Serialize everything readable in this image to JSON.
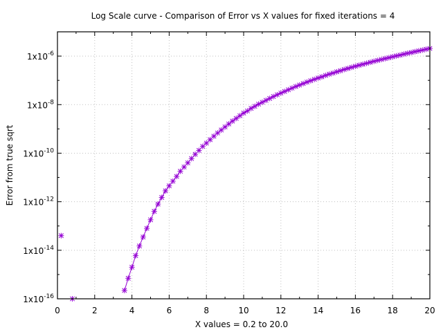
{
  "chart_data": {
    "type": "scatter",
    "title": "Log Scale curve - Comparison of Error vs X values for fixed iterations = 4",
    "xlabel": "X values = 0.2 to 20.0",
    "ylabel": "Error from true sqrt",
    "xlim": [
      0,
      20
    ],
    "ylim": [
      1e-16,
      1e-05
    ],
    "y_scale": "log",
    "grid": true,
    "legend": "none",
    "marker": "asterisk",
    "series_color": "#9400d3",
    "x_ticks": [
      "0",
      "2",
      "4",
      "6",
      "8",
      "10",
      "12",
      "14",
      "16",
      "18",
      "20"
    ],
    "y_ticks": [
      {
        "value": 1e-16,
        "mantissa": "1x10",
        "exponent": "-16"
      },
      {
        "value": 1e-14,
        "mantissa": "1x10",
        "exponent": "-14"
      },
      {
        "value": 1e-12,
        "mantissa": "1x10",
        "exponent": "-12"
      },
      {
        "value": 1e-10,
        "mantissa": "1x10",
        "exponent": "-10"
      },
      {
        "value": 1e-08,
        "mantissa": "1x10",
        "exponent": "-8"
      },
      {
        "value": 1e-06,
        "mantissa": "1x10",
        "exponent": "-6"
      }
    ],
    "series": [
      {
        "points": [
          [
            0.2,
            4e-14
          ],
          [
            0.8,
            1e-16
          ],
          [
            3.6,
            2.2e-16
          ],
          [
            3.8,
            7e-16
          ],
          [
            4.0,
            2e-15
          ],
          [
            4.2,
            6e-15
          ],
          [
            4.4,
            1.5e-14
          ],
          [
            4.6,
            3.5e-14
          ],
          [
            4.8,
            8e-14
          ],
          [
            5.0,
            1.8e-13
          ],
          [
            5.2,
            4e-13
          ],
          [
            5.4,
            8e-13
          ],
          [
            5.6,
            1.5e-12
          ],
          [
            5.8,
            2.8e-12
          ],
          [
            6.0,
            4.5e-12
          ],
          [
            6.2,
            7e-12
          ],
          [
            6.4,
            1.1e-11
          ],
          [
            6.6,
            1.8e-11
          ],
          [
            6.8,
            2.7e-11
          ],
          [
            7.0,
            4e-11
          ],
          [
            7.2,
            6e-11
          ],
          [
            7.4,
            9e-11
          ],
          [
            7.6,
            1.3e-10
          ],
          [
            7.8,
            1.9e-10
          ],
          [
            8.0,
            2.6e-10
          ],
          [
            8.2,
            3.6e-10
          ],
          [
            8.4,
            5e-10
          ],
          [
            8.6,
            6.8e-10
          ],
          [
            8.8,
            9e-10
          ],
          [
            9.0,
            1.2e-09
          ],
          [
            9.2,
            1.6e-09
          ],
          [
            9.4,
            2.1e-09
          ],
          [
            9.6,
            2.7e-09
          ],
          [
            9.8,
            3.5e-09
          ],
          [
            10.0,
            4.5e-09
          ],
          [
            10.2,
            5.5e-09
          ],
          [
            10.4,
            7e-09
          ],
          [
            10.6,
            8.5e-09
          ],
          [
            10.8,
            1.05e-08
          ],
          [
            11.0,
            1.25e-08
          ],
          [
            11.2,
            1.5e-08
          ],
          [
            11.4,
            1.8e-08
          ],
          [
            11.6,
            2.15e-08
          ],
          [
            11.8,
            2.55e-08
          ],
          [
            12.0,
            3e-08
          ],
          [
            12.2,
            3.5e-08
          ],
          [
            12.4,
            4.1e-08
          ],
          [
            12.6,
            4.8e-08
          ],
          [
            12.8,
            5.6e-08
          ],
          [
            13.0,
            6.4e-08
          ],
          [
            13.2,
            7.4e-08
          ],
          [
            13.4,
            8.5e-08
          ],
          [
            13.6,
            9.7e-08
          ],
          [
            13.8,
            1.1e-07
          ],
          [
            14.0,
            1.25e-07
          ],
          [
            14.2,
            1.4e-07
          ],
          [
            14.4,
            1.6e-07
          ],
          [
            14.6,
            1.8e-07
          ],
          [
            14.8,
            2e-07
          ],
          [
            15.0,
            2.25e-07
          ],
          [
            15.2,
            2.5e-07
          ],
          [
            15.4,
            2.8e-07
          ],
          [
            15.6,
            3.1e-07
          ],
          [
            15.8,
            3.45e-07
          ],
          [
            16.0,
            3.8e-07
          ],
          [
            16.2,
            4.2e-07
          ],
          [
            16.4,
            4.6e-07
          ],
          [
            16.6,
            5.05e-07
          ],
          [
            16.8,
            5.55e-07
          ],
          [
            17.0,
            6.1e-07
          ],
          [
            17.2,
            6.65e-07
          ],
          [
            17.4,
            7.25e-07
          ],
          [
            17.6,
            7.9e-07
          ],
          [
            17.8,
            8.6e-07
          ],
          [
            18.0,
            9.4e-07
          ],
          [
            18.2,
            1.02e-06
          ],
          [
            18.4,
            1.1e-06
          ],
          [
            18.6,
            1.2e-06
          ],
          [
            18.8,
            1.3e-06
          ],
          [
            19.0,
            1.4e-06
          ],
          [
            19.2,
            1.52e-06
          ],
          [
            19.4,
            1.64e-06
          ],
          [
            19.6,
            1.77e-06
          ],
          [
            19.8,
            1.91e-06
          ],
          [
            20.0,
            2.06e-06
          ]
        ]
      }
    ]
  }
}
